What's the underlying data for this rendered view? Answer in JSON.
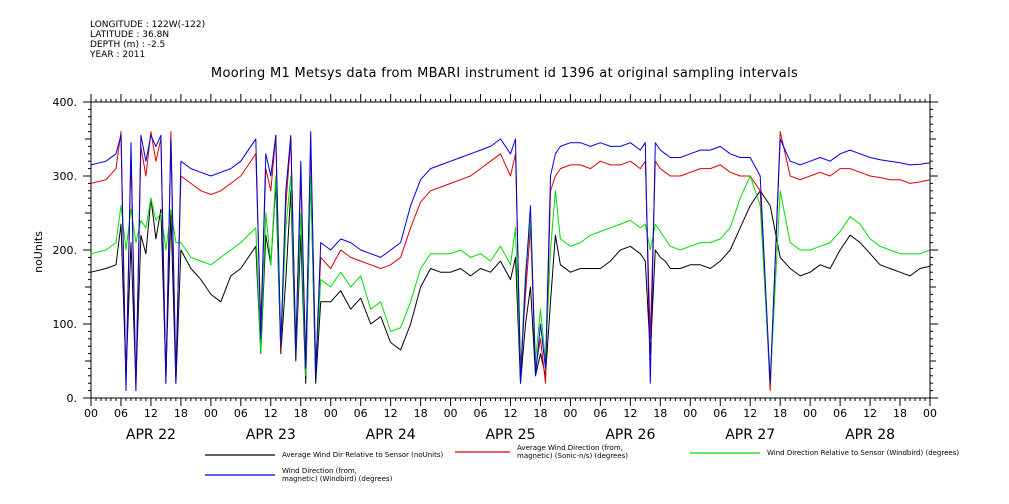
{
  "header": {
    "longitude": "LONGITUDE : 122W(-122)",
    "latitude": "LATITUDE : 36.8N",
    "depth": "DEPTH (m) : -2.5",
    "year": "YEAR : 2011"
  },
  "chart_data": {
    "type": "line",
    "title": "Mooring M1 Metsys data from MBARI instrument id 1396 at original sampling intervals",
    "ylabel": "noUnits",
    "xlabel": "",
    "ylim": [
      0,
      400
    ],
    "yticks": [
      "0.",
      "100.",
      "200.",
      "300.",
      "400."
    ],
    "xlim_hours": [
      0,
      168
    ],
    "xticks_hours": [
      "00",
      "06",
      "12",
      "18",
      "00",
      "06",
      "12",
      "18",
      "00",
      "06",
      "12",
      "18",
      "00",
      "06",
      "12",
      "18",
      "00",
      "06",
      "12",
      "18",
      "00",
      "06",
      "12",
      "18",
      "00",
      "06",
      "12",
      "18",
      "00"
    ],
    "day_labels": [
      "APR 22",
      "APR 23",
      "APR 24",
      "APR 25",
      "APR 26",
      "APR 27",
      "APR 28"
    ],
    "x_unit": "hours since 2011-04-22 00:00",
    "series": [
      {
        "name": "Average Wind Dir Relative to Sensor (noUnits)",
        "color": "#000000",
        "x": [
          0,
          3,
          5,
          6,
          7,
          8,
          9,
          10,
          11,
          12,
          13,
          14,
          15,
          16,
          17,
          18,
          20,
          22,
          24,
          26,
          28,
          30,
          33,
          34,
          35,
          36,
          37,
          38,
          39,
          40,
          41,
          42,
          43,
          44,
          45,
          46,
          48,
          50,
          52,
          54,
          56,
          58,
          60,
          62,
          64,
          66,
          68,
          70,
          72,
          74,
          76,
          78,
          80,
          82,
          84,
          85,
          86,
          87,
          88,
          89,
          90,
          91,
          92,
          93,
          94,
          96,
          98,
          100,
          102,
          104,
          106,
          108,
          110,
          111,
          112,
          113,
          114,
          115,
          116,
          118,
          120,
          122,
          124,
          126,
          128,
          130,
          132,
          134,
          136,
          138,
          140,
          142,
          144,
          146,
          148,
          150,
          152,
          154,
          156,
          158,
          160,
          162,
          164,
          166,
          168
        ],
        "values": [
          170,
          175,
          180,
          235,
          30,
          210,
          20,
          220,
          195,
          270,
          215,
          255,
          30,
          250,
          20,
          200,
          175,
          160,
          140,
          130,
          165,
          175,
          205,
          60,
          220,
          180,
          290,
          60,
          160,
          280,
          50,
          220,
          20,
          300,
          20,
          130,
          130,
          145,
          120,
          135,
          100,
          110,
          75,
          65,
          100,
          150,
          175,
          170,
          170,
          175,
          165,
          175,
          170,
          185,
          160,
          190,
          20,
          100,
          150,
          30,
          60,
          30,
          130,
          220,
          180,
          170,
          175,
          175,
          175,
          185,
          200,
          205,
          195,
          185,
          60,
          200,
          190,
          185,
          175,
          175,
          180,
          180,
          175,
          185,
          200,
          230,
          260,
          280,
          260,
          190,
          175,
          165,
          170,
          180,
          175,
          200,
          220,
          210,
          195,
          180,
          175,
          170,
          165,
          175,
          178
        ]
      },
      {
        "name": "Average Wind Direction (from, magnetic) (Sonic-n/s) (degrees)",
        "color": "#dd0000",
        "x": [
          0,
          3,
          5,
          6,
          7,
          8,
          9,
          10,
          11,
          12,
          13,
          14,
          15,
          16,
          17,
          18,
          20,
          22,
          24,
          26,
          28,
          30,
          33,
          34,
          35,
          36,
          37,
          38,
          39,
          40,
          41,
          42,
          43,
          44,
          45,
          46,
          48,
          50,
          52,
          54,
          56,
          58,
          60,
          62,
          64,
          66,
          68,
          70,
          72,
          74,
          76,
          78,
          80,
          82,
          84,
          85,
          86,
          87,
          88,
          89,
          90,
          91,
          92,
          93,
          94,
          96,
          98,
          100,
          102,
          104,
          106,
          108,
          110,
          111,
          112,
          113,
          114,
          115,
          116,
          118,
          120,
          122,
          124,
          126,
          128,
          130,
          132,
          134,
          136,
          138,
          140,
          142,
          144,
          146,
          148,
          150,
          152,
          154,
          156,
          158,
          160,
          162,
          164,
          166,
          168
        ],
        "values": [
          290,
          295,
          310,
          360,
          20,
          330,
          10,
          340,
          300,
          360,
          320,
          350,
          20,
          360,
          30,
          300,
          290,
          280,
          275,
          280,
          290,
          300,
          330,
          100,
          310,
          280,
          355,
          60,
          260,
          350,
          70,
          300,
          50,
          340,
          40,
          190,
          175,
          200,
          190,
          185,
          180,
          175,
          180,
          190,
          230,
          265,
          280,
          285,
          290,
          295,
          300,
          310,
          320,
          330,
          300,
          330,
          40,
          140,
          230,
          40,
          80,
          20,
          280,
          300,
          310,
          315,
          315,
          310,
          320,
          315,
          315,
          320,
          310,
          320,
          80,
          320,
          310,
          305,
          300,
          300,
          305,
          310,
          310,
          315,
          305,
          300,
          300,
          280,
          10,
          360,
          300,
          295,
          300,
          305,
          300,
          310,
          310,
          305,
          300,
          298,
          295,
          295,
          290,
          292,
          295
        ]
      },
      {
        "name": "Wind Direction Relative to Sensor (Windbird) (degrees)",
        "color": "#00dd00",
        "x": [
          0,
          3,
          5,
          6,
          7,
          8,
          9,
          10,
          11,
          12,
          13,
          14,
          15,
          16,
          17,
          18,
          20,
          22,
          24,
          26,
          28,
          30,
          33,
          34,
          35,
          36,
          37,
          38,
          39,
          40,
          41,
          42,
          43,
          44,
          45,
          46,
          48,
          50,
          52,
          54,
          56,
          58,
          60,
          62,
          64,
          66,
          68,
          70,
          72,
          74,
          76,
          78,
          80,
          82,
          84,
          85,
          86,
          87,
          88,
          89,
          90,
          91,
          92,
          93,
          94,
          96,
          98,
          100,
          102,
          104,
          106,
          108,
          110,
          111,
          112,
          113,
          114,
          115,
          116,
          118,
          120,
          122,
          124,
          126,
          128,
          130,
          132,
          134,
          136,
          138,
          140,
          142,
          144,
          146,
          148,
          150,
          152,
          154,
          156,
          158,
          160,
          162,
          164,
          166,
          168
        ],
        "values": [
          195,
          200,
          210,
          260,
          200,
          255,
          210,
          240,
          230,
          270,
          240,
          250,
          200,
          255,
          210,
          210,
          190,
          185,
          180,
          190,
          200,
          210,
          230,
          60,
          250,
          180,
          300,
          70,
          230,
          300,
          60,
          250,
          30,
          300,
          40,
          160,
          150,
          170,
          150,
          165,
          120,
          130,
          90,
          95,
          130,
          175,
          195,
          195,
          195,
          200,
          190,
          195,
          185,
          205,
          180,
          230,
          30,
          170,
          240,
          50,
          120,
          50,
          200,
          280,
          215,
          205,
          210,
          220,
          225,
          230,
          235,
          240,
          230,
          235,
          200,
          235,
          225,
          215,
          205,
          200,
          205,
          210,
          210,
          215,
          230,
          270,
          300,
          260,
          20,
          280,
          210,
          200,
          200,
          205,
          210,
          225,
          245,
          235,
          215,
          205,
          200,
          195,
          195,
          195,
          200
        ]
      },
      {
        "name": "Wind Direction (from, magnetic) (Windbird) (degrees)",
        "color": "#0000dd",
        "x": [
          0,
          3,
          5,
          6,
          7,
          8,
          9,
          10,
          11,
          12,
          13,
          14,
          15,
          16,
          17,
          18,
          20,
          22,
          24,
          26,
          28,
          30,
          33,
          34,
          35,
          36,
          37,
          38,
          39,
          40,
          41,
          42,
          43,
          44,
          45,
          46,
          48,
          50,
          52,
          54,
          56,
          58,
          60,
          62,
          64,
          66,
          68,
          70,
          72,
          74,
          76,
          78,
          80,
          82,
          84,
          85,
          86,
          87,
          88,
          89,
          90,
          91,
          92,
          93,
          94,
          96,
          98,
          100,
          102,
          104,
          106,
          108,
          110,
          111,
          112,
          113,
          114,
          115,
          116,
          118,
          120,
          122,
          124,
          126,
          128,
          130,
          132,
          134,
          136,
          138,
          140,
          142,
          144,
          146,
          148,
          150,
          152,
          154,
          156,
          158,
          160,
          162,
          164,
          166,
          168
        ],
        "values": [
          315,
          320,
          330,
          355,
          10,
          345,
          10,
          355,
          320,
          355,
          340,
          355,
          20,
          350,
          20,
          320,
          310,
          305,
          300,
          305,
          310,
          320,
          350,
          80,
          330,
          300,
          355,
          70,
          280,
          355,
          60,
          320,
          40,
          360,
          30,
          210,
          200,
          215,
          210,
          200,
          195,
          190,
          200,
          210,
          260,
          295,
          310,
          315,
          320,
          325,
          330,
          335,
          340,
          350,
          330,
          350,
          20,
          160,
          260,
          30,
          100,
          40,
          300,
          330,
          340,
          345,
          345,
          340,
          345,
          340,
          340,
          345,
          335,
          345,
          20,
          345,
          335,
          330,
          325,
          325,
          330,
          335,
          335,
          340,
          330,
          325,
          325,
          300,
          20,
          350,
          320,
          315,
          320,
          325,
          320,
          330,
          335,
          330,
          325,
          322,
          320,
          318,
          315,
          316,
          318
        ]
      }
    ]
  }
}
